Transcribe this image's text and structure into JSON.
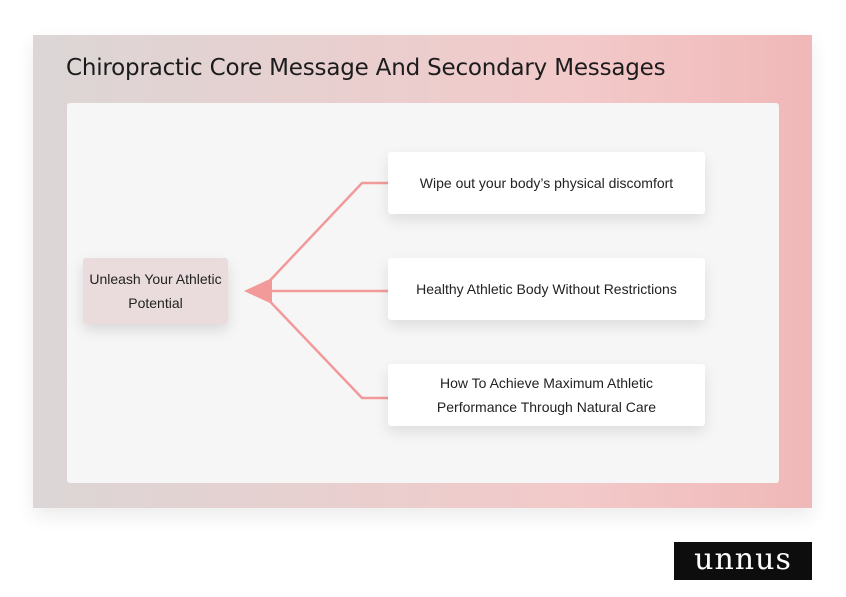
{
  "title": "Chiropractic Core Message And Secondary Messages",
  "core_message": "Unleash Your Athletic Potential",
  "secondary_messages": [
    "Wipe out your body’s physical discomfort",
    "Healthy Athletic Body Without Restrictions",
    "How To Achieve Maximum Athletic Performance Through Natural Care"
  ],
  "logo": "unnus",
  "colors": {
    "connector": "#f29a9a",
    "core_box": "#eadcdc",
    "frame_gradient_start": "#dcd6d6",
    "frame_gradient_end": "#f0b8b8"
  }
}
